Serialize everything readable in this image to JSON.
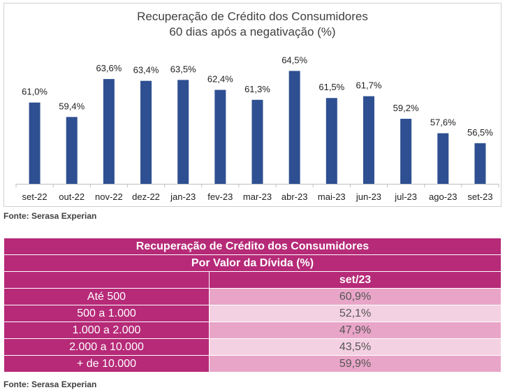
{
  "chart_data": {
    "type": "bar",
    "title": "Recuperação de Crédito dos Consumidores",
    "subtitle": "60 dias após a negativação (%)",
    "categories": [
      "set-22",
      "out-22",
      "nov-22",
      "dez-22",
      "jan-23",
      "fev-23",
      "mar-23",
      "abr-23",
      "mai-23",
      "jun-23",
      "jul-23",
      "ago-23",
      "set-23"
    ],
    "values": [
      61.0,
      59.4,
      63.6,
      63.4,
      63.5,
      62.4,
      61.3,
      64.5,
      61.5,
      61.7,
      59.2,
      57.6,
      56.5
    ],
    "data_labels": [
      "61,0%",
      "59,4%",
      "63,6%",
      "63,4%",
      "63,5%",
      "62,4%",
      "61,3%",
      "64,5%",
      "61,5%",
      "61,7%",
      "59,2%",
      "57,6%",
      "56,5%"
    ],
    "bar_color": "#2e4f91",
    "ylim": [
      52,
      65
    ],
    "grid": false
  },
  "source_top": "Fonte: Serasa Experian",
  "table": {
    "title": "Recuperação de Crédito dos Consumidores",
    "subtitle": "Por Valor da Dívida (%)",
    "column_header": "set/23",
    "rows": [
      {
        "label": "Até 500",
        "value": "60,9%"
      },
      {
        "label": "500 a 1.000",
        "value": "52,1%"
      },
      {
        "label": "1.000 a 2.000",
        "value": "47,9%"
      },
      {
        "label": "2.000 a 10.000",
        "value": "43,5%"
      },
      {
        "label": "+ de 10.000",
        "value": "59,9%"
      }
    ],
    "header_color": "#b62a78",
    "row_colors": [
      "#e9a5c8",
      "#f4d1e2"
    ]
  },
  "source_bottom": "Fonte: Serasa Experian"
}
